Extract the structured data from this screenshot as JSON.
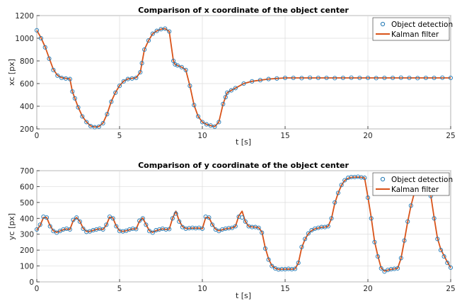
{
  "chart_data": [
    {
      "type": "line",
      "title": "Comparison of x coordinate of the object center",
      "xlabel": "t [s]",
      "ylabel": "xc [px]",
      "xlim": [
        0,
        25
      ],
      "ylim": [
        200,
        1200
      ],
      "xticks": [
        0,
        5,
        10,
        15,
        20,
        25
      ],
      "yticks": [
        200,
        400,
        600,
        800,
        1000,
        1200
      ],
      "grid": true,
      "legend_position": "top-right",
      "series": [
        {
          "name": "Object detection",
          "style": "markers",
          "color": "#1f77b4",
          "x": [
            0,
            0.25,
            0.5,
            0.75,
            1,
            1.25,
            1.5,
            1.75,
            2,
            2.15,
            2.3,
            2.5,
            2.75,
            3,
            3.25,
            3.5,
            3.75,
            4,
            4.25,
            4.5,
            4.75,
            5,
            5.25,
            5.5,
            5.75,
            6,
            6.25,
            6.35,
            6.5,
            6.75,
            7,
            7.25,
            7.5,
            7.75,
            8,
            8.25,
            8.35,
            8.5,
            8.75,
            9,
            9.25,
            9.5,
            9.75,
            10,
            10.25,
            10.5,
            10.75,
            11,
            11.25,
            11.4,
            11.5,
            11.75,
            12,
            12.5,
            13,
            13.5,
            14,
            14.5,
            15,
            15.5,
            16,
            16.5,
            17,
            17.5,
            18,
            18.5,
            19,
            19.5,
            20,
            20.5,
            21,
            21.5,
            22,
            22.5,
            23,
            23.5,
            24,
            24.5,
            25
          ],
          "y": [
            1070,
            1000,
            920,
            820,
            720,
            670,
            650,
            645,
            640,
            530,
            470,
            390,
            310,
            260,
            225,
            215,
            220,
            250,
            330,
            440,
            520,
            580,
            620,
            640,
            645,
            650,
            700,
            780,
            900,
            980,
            1040,
            1065,
            1080,
            1085,
            1060,
            800,
            770,
            760,
            745,
            720,
            580,
            410,
            310,
            260,
            240,
            230,
            220,
            260,
            420,
            480,
            520,
            540,
            560,
            600,
            620,
            630,
            640,
            645,
            650,
            650,
            648,
            652,
            650,
            650,
            648,
            650,
            652,
            650,
            650,
            648,
            650,
            650,
            652,
            650,
            648,
            650,
            650,
            652,
            650
          ]
        },
        {
          "name": "Kalman filter",
          "style": "line",
          "color": "#d95319",
          "x": [
            0,
            0.25,
            0.5,
            0.75,
            1,
            1.25,
            1.5,
            1.75,
            2,
            2.15,
            2.3,
            2.5,
            2.75,
            3,
            3.25,
            3.5,
            3.75,
            4,
            4.25,
            4.5,
            4.75,
            5,
            5.25,
            5.5,
            5.75,
            6,
            6.25,
            6.35,
            6.5,
            6.75,
            7,
            7.25,
            7.5,
            7.75,
            8,
            8.25,
            8.35,
            8.5,
            8.75,
            9,
            9.25,
            9.5,
            9.75,
            10,
            10.25,
            10.5,
            10.75,
            11,
            11.25,
            11.4,
            11.5,
            11.75,
            12,
            12.5,
            13,
            13.5,
            14,
            14.5,
            15,
            15.5,
            16,
            16.5,
            17,
            17.5,
            18,
            18.5,
            19,
            19.5,
            20,
            20.5,
            21,
            21.5,
            22,
            22.5,
            23,
            23.5,
            24,
            24.5,
            25
          ],
          "y": [
            1070,
            1005,
            925,
            825,
            725,
            672,
            652,
            646,
            641,
            530,
            470,
            392,
            312,
            262,
            226,
            216,
            221,
            252,
            332,
            442,
            522,
            582,
            621,
            641,
            646,
            651,
            700,
            780,
            900,
            980,
            1040,
            1065,
            1080,
            1085,
            1060,
            800,
            770,
            760,
            745,
            720,
            580,
            410,
            310,
            260,
            240,
            230,
            220,
            262,
            420,
            480,
            520,
            540,
            560,
            600,
            620,
            630,
            640,
            645,
            650,
            650,
            650,
            650,
            650,
            650,
            650,
            650,
            650,
            650,
            650,
            650,
            650,
            650,
            650,
            650,
            650,
            650,
            650,
            650,
            650
          ]
        }
      ]
    },
    {
      "type": "line",
      "title": "Comparison of y coordinate of the object center",
      "xlabel": "t [s]",
      "ylabel": "yc [px]",
      "xlim": [
        0,
        25
      ],
      "ylim": [
        0,
        700
      ],
      "xticks": [
        0,
        5,
        10,
        15,
        20,
        25
      ],
      "yticks": [
        0,
        100,
        200,
        300,
        400,
        500,
        600,
        700
      ],
      "grid": true,
      "legend_position": "top-right",
      "series": [
        {
          "name": "Object detection",
          "style": "markers",
          "color": "#1f77b4",
          "x": [
            0,
            0.2,
            0.4,
            0.6,
            0.8,
            1,
            1.2,
            1.4,
            1.6,
            1.8,
            2,
            2.2,
            2.4,
            2.6,
            2.8,
            3,
            3.2,
            3.4,
            3.6,
            3.8,
            4,
            4.2,
            4.4,
            4.6,
            4.8,
            5,
            5.2,
            5.4,
            5.6,
            5.8,
            6,
            6.2,
            6.4,
            6.6,
            6.8,
            7,
            7.2,
            7.4,
            7.6,
            7.8,
            8,
            8.2,
            8.4,
            8.6,
            8.8,
            9,
            9.2,
            9.4,
            9.6,
            9.8,
            10,
            10.2,
            10.4,
            10.6,
            10.8,
            11,
            11.2,
            11.4,
            11.6,
            11.8,
            12,
            12.2,
            12.4,
            12.6,
            12.8,
            13,
            13.2,
            13.4,
            13.6,
            13.8,
            14,
            14.2,
            14.4,
            14.6,
            14.8,
            15,
            15.2,
            15.4,
            15.6,
            15.8,
            16,
            16.2,
            16.4,
            16.6,
            16.8,
            17,
            17.2,
            17.4,
            17.6,
            17.8,
            18,
            18.2,
            18.4,
            18.6,
            18.8,
            19,
            19.2,
            19.4,
            19.6,
            19.8,
            20,
            20.2,
            20.4,
            20.6,
            20.8,
            21,
            21.2,
            21.4,
            21.6,
            21.8,
            22,
            22.2,
            22.4,
            22.6,
            22.8,
            23,
            23.2,
            23.4,
            23.6,
            23.8,
            24,
            24.2,
            24.4,
            24.6,
            24.8,
            25
          ],
          "y": [
            330,
            360,
            410,
            405,
            350,
            320,
            310,
            320,
            330,
            335,
            330,
            390,
            405,
            380,
            335,
            315,
            318,
            325,
            330,
            335,
            330,
            360,
            410,
            400,
            350,
            320,
            318,
            322,
            330,
            335,
            332,
            385,
            400,
            360,
            320,
            310,
            325,
            330,
            335,
            330,
            332,
            400,
            430,
            380,
            345,
            335,
            338,
            340,
            338,
            340,
            335,
            410,
            405,
            360,
            330,
            320,
            330,
            335,
            338,
            340,
            350,
            410,
            405,
            380,
            350,
            345,
            345,
            340,
            310,
            210,
            140,
            100,
            85,
            78,
            80,
            80,
            82,
            80,
            82,
            120,
            220,
            270,
            305,
            325,
            335,
            340,
            345,
            345,
            350,
            400,
            500,
            560,
            610,
            640,
            655,
            660,
            660,
            662,
            658,
            655,
            530,
            400,
            250,
            160,
            85,
            65,
            75,
            80,
            82,
            85,
            150,
            260,
            380,
            480,
            560,
            630,
            650,
            655,
            630,
            540,
            400,
            270,
            200,
            160,
            120,
            90
          ]
        },
        {
          "name": "Kalman filter",
          "style": "line",
          "color": "#d95319",
          "x": [
            0,
            0.2,
            0.4,
            0.6,
            0.8,
            1,
            1.2,
            1.4,
            1.6,
            1.8,
            2,
            2.2,
            2.4,
            2.6,
            2.8,
            3,
            3.2,
            3.4,
            3.6,
            3.8,
            4,
            4.2,
            4.4,
            4.6,
            4.8,
            5,
            5.2,
            5.4,
            5.6,
            5.8,
            6,
            6.2,
            6.4,
            6.6,
            6.8,
            7,
            7.2,
            7.4,
            7.6,
            7.8,
            8,
            8.2,
            8.4,
            8.6,
            8.8,
            9,
            9.2,
            9.4,
            9.6,
            9.8,
            10,
            10.2,
            10.4,
            10.6,
            10.8,
            11,
            11.2,
            11.4,
            11.6,
            11.8,
            12,
            12.2,
            12.4,
            12.6,
            12.8,
            13,
            13.2,
            13.4,
            13.6,
            13.8,
            14,
            14.2,
            14.4,
            14.6,
            14.8,
            15,
            15.2,
            15.4,
            15.6,
            15.8,
            16,
            16.2,
            16.4,
            16.6,
            16.8,
            17,
            17.2,
            17.4,
            17.6,
            17.8,
            18,
            18.2,
            18.4,
            18.6,
            18.8,
            19,
            19.2,
            19.4,
            19.6,
            19.8,
            20,
            20.2,
            20.4,
            20.6,
            20.8,
            21,
            21.2,
            21.4,
            21.6,
            21.8,
            22,
            22.2,
            22.4,
            22.6,
            22.8,
            23,
            23.2,
            23.4,
            23.6,
            23.8,
            24,
            24.2,
            24.4,
            24.6,
            24.8,
            25
          ],
          "y": [
            325,
            355,
            405,
            405,
            355,
            322,
            312,
            320,
            328,
            333,
            330,
            385,
            405,
            382,
            338,
            318,
            318,
            324,
            330,
            334,
            330,
            358,
            408,
            402,
            352,
            322,
            318,
            322,
            328,
            334,
            332,
            382,
            402,
            362,
            322,
            312,
            323,
            328,
            334,
            330,
            332,
            400,
            445,
            385,
            348,
            336,
            337,
            339,
            338,
            339,
            335,
            405,
            405,
            362,
            332,
            322,
            328,
            334,
            337,
            340,
            350,
            415,
            445,
            380,
            350,
            346,
            345,
            341,
            315,
            215,
            145,
            102,
            86,
            79,
            80,
            80,
            81,
            80,
            82,
            118,
            215,
            268,
            303,
            323,
            334,
            339,
            344,
            345,
            350,
            398,
            495,
            558,
            608,
            638,
            652,
            658,
            659,
            660,
            658,
            655,
            535,
            405,
            255,
            165,
            88,
            68,
            74,
            79,
            82,
            86,
            148,
            258,
            378,
            478,
            558,
            628,
            648,
            652,
            632,
            545,
            405,
            275,
            205,
            165,
            125,
            90
          ]
        }
      ]
    }
  ]
}
